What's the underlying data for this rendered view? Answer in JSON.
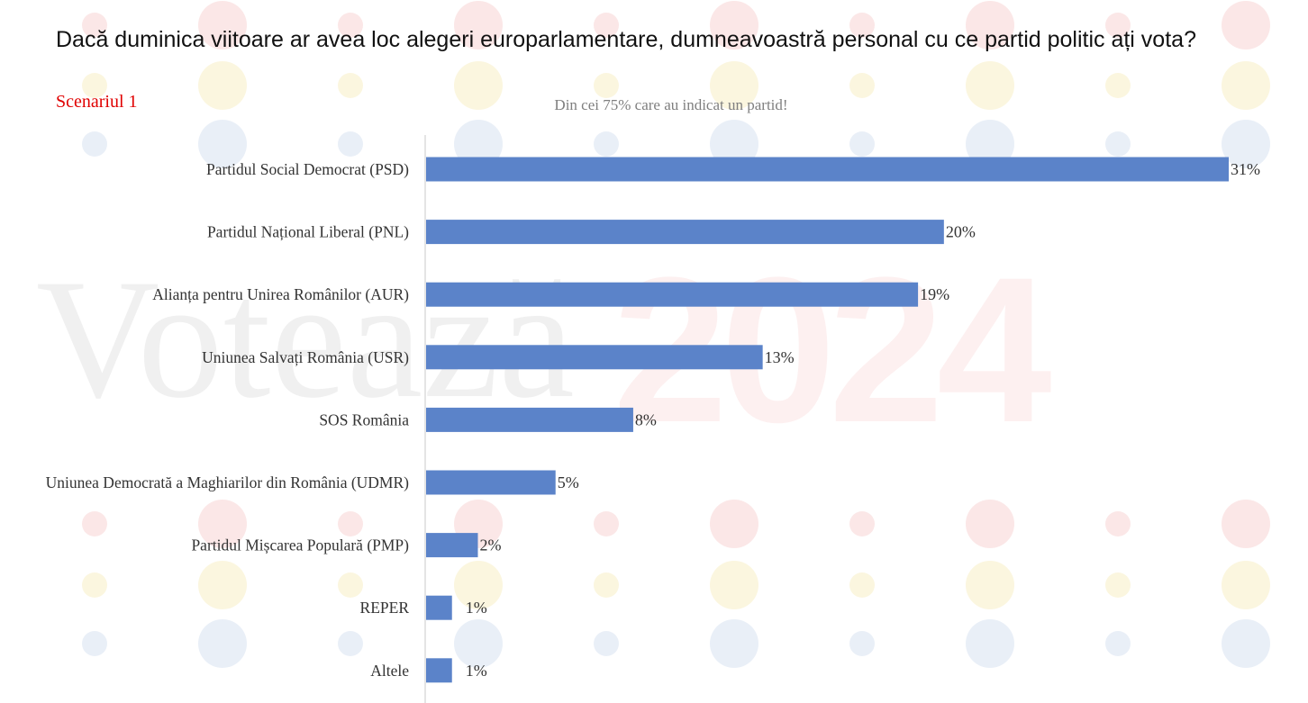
{
  "title": "Dacă duminica viitoare ar avea loc alegeri europarlamentare, dumneavoastră personal cu ce partid politic ați vota?",
  "subtitle": "Scenariul 1",
  "note": "Din cei 75% care au indicat un partid!",
  "watermark": {
    "word": "Votează",
    "year": "2024"
  },
  "colors": {
    "bar": "#5b83c9",
    "axis": "#c8c8c8",
    "subtitle": "#e00000",
    "note": "#7f7f7f"
  },
  "chart_data": {
    "type": "bar",
    "orientation": "horizontal",
    "categories": [
      "Partidul Social Democrat (PSD)",
      "Partidul Național Liberal (PNL)",
      "Alianța pentru Unirea Românilor (AUR)",
      "Uniunea Salvați România (USR)",
      "SOS România",
      "Uniunea Democrată a Maghiarilor din România (UDMR)",
      "Partidul Mișcarea Populară (PMP)",
      "REPER",
      "Altele"
    ],
    "values": [
      31,
      20,
      19,
      13,
      8,
      5,
      2,
      1,
      1
    ],
    "value_labels": [
      "31%",
      "20%",
      "19%",
      "13%",
      "8%",
      "5%",
      "2%",
      "1%",
      "1%"
    ],
    "unit": "%",
    "xlim": [
      0,
      31
    ],
    "grid": false,
    "legend": "none"
  }
}
